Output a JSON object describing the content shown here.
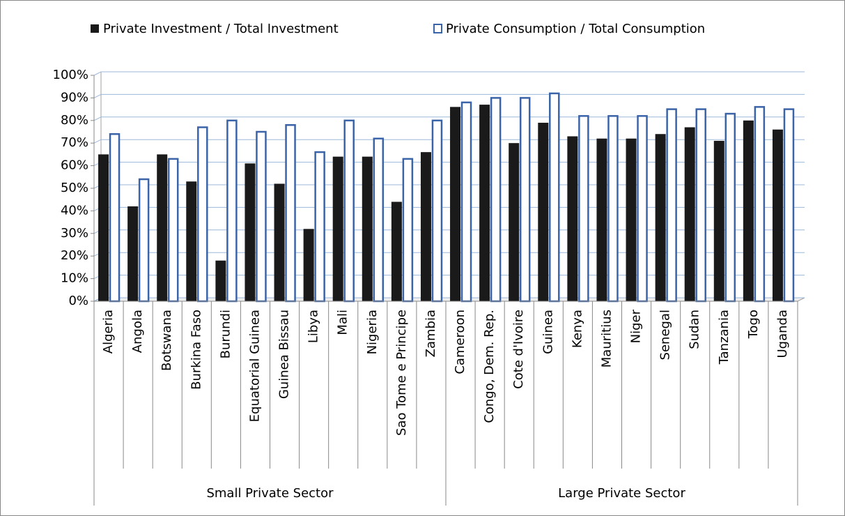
{
  "chart_data": {
    "type": "bar",
    "groups": [
      {
        "name": "Small Private Sector",
        "categories": [
          "Algeria",
          "Angola",
          "Botswana",
          "Burkina Faso",
          "Burundi",
          "Equatorial Guinea",
          "Guinea Bissau",
          "Libya",
          "Mali",
          "Nigeria",
          "Sao Tome e Principe",
          "Zambia"
        ]
      },
      {
        "name": "Large Private Sector",
        "categories": [
          "Cameroon",
          "Congo, Dem. Rep.",
          "Cote d'Ivoire",
          "Guinea",
          "Kenya",
          "Mauritius",
          "Niger",
          "Senegal",
          "Sudan",
          "Tanzania",
          "Togo",
          "Uganda"
        ]
      }
    ],
    "series": [
      {
        "name": "Private Investment / Total Investment",
        "color": "#1a1a1a",
        "values": [
          65,
          42,
          65,
          53,
          18,
          61,
          52,
          32,
          64,
          64,
          44,
          66,
          86,
          87,
          70,
          79,
          73,
          72,
          72,
          74,
          77,
          71,
          80,
          76
        ]
      },
      {
        "name": "Private Consumption / Total Consumption",
        "color": "#3b64a8",
        "values": [
          74,
          54,
          63,
          77,
          80,
          75,
          78,
          66,
          80,
          72,
          63,
          80,
          88,
          90,
          90,
          92,
          82,
          82,
          82,
          85,
          85,
          83,
          86,
          85
        ]
      }
    ],
    "ylim": [
      0,
      100
    ],
    "yticks": [
      {
        "value": 0,
        "label": "0%"
      },
      {
        "value": 10,
        "label": "10%"
      },
      {
        "value": 20,
        "label": "20%"
      },
      {
        "value": 30,
        "label": "30%"
      },
      {
        "value": 40,
        "label": "40%"
      },
      {
        "value": 50,
        "label": "50%"
      },
      {
        "value": 60,
        "label": "60%"
      },
      {
        "value": 70,
        "label": "70%"
      },
      {
        "value": 80,
        "label": "80%"
      },
      {
        "value": 90,
        "label": "90%"
      },
      {
        "value": 100,
        "label": "100%"
      }
    ],
    "grid": true
  }
}
